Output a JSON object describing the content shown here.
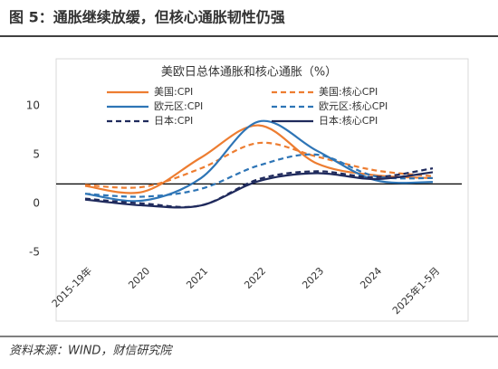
{
  "figure_title": "图 5：通胀继续放缓，但核心通胀韧性仍强",
  "chart_data": {
    "type": "line",
    "title": "美欧日总体通胀和核心通胀（%）",
    "categories": [
      "2015-19年",
      "2020",
      "2021",
      "2022",
      "2023",
      "2024",
      "2025年1-5月"
    ],
    "series": [
      {
        "name": "美国:CPI",
        "color": "#ED7D31",
        "dash": false,
        "values": [
          1.8,
          1.2,
          4.7,
          8.0,
          4.1,
          2.9,
          2.6
        ]
      },
      {
        "name": "美国:核心CPI",
        "color": "#ED7D31",
        "dash": true,
        "values": [
          1.9,
          1.7,
          3.6,
          6.2,
          4.8,
          3.4,
          2.8
        ]
      },
      {
        "name": "欧元区:CPI",
        "color": "#2E75B6",
        "dash": false,
        "values": [
          1.0,
          0.3,
          2.6,
          8.4,
          5.4,
          2.4,
          2.2
        ]
      },
      {
        "name": "欧元区:核心CPI",
        "color": "#2E75B6",
        "dash": true,
        "values": [
          1.0,
          0.7,
          1.5,
          3.9,
          5.0,
          2.8,
          2.6
        ]
      },
      {
        "name": "日本:CPI",
        "color": "#1F2A5C",
        "dash": true,
        "values": [
          0.5,
          0.0,
          -0.2,
          2.5,
          3.3,
          2.7,
          3.6
        ]
      },
      {
        "name": "日本:核心CPI",
        "color": "#1F2A5C",
        "dash": false,
        "values": [
          0.4,
          -0.2,
          -0.2,
          2.3,
          3.1,
          2.5,
          3.2
        ]
      }
    ],
    "ylim": [
      -6,
      10
    ],
    "yticks": [
      -5,
      0,
      5,
      10
    ],
    "grid": false,
    "reference_line": 2
  },
  "source": "资料来源：WIND，财信研究院"
}
